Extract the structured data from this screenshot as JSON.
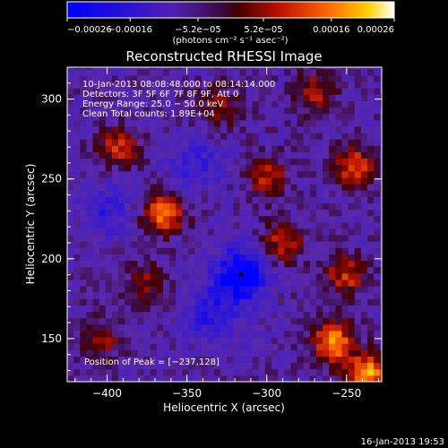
{
  "chart_data": {
    "type": "heatmap",
    "title": "Reconstructed RHESSI Image",
    "xlabel": "Heliocentric X (arcsec)",
    "ylabel": "Heliocentric Y (arcsec)",
    "xlim": [
      -425,
      -228
    ],
    "ylim": [
      123,
      320
    ],
    "x_ticks": [
      {
        "value": -400,
        "label": "−400"
      },
      {
        "value": -350,
        "label": "−350"
      },
      {
        "value": -300,
        "label": "−300"
      },
      {
        "value": -250,
        "label": "−250"
      }
    ],
    "y_ticks": [
      {
        "value": 150,
        "label": "150"
      },
      {
        "value": 200,
        "label": "200"
      },
      {
        "value": 250,
        "label": "250"
      },
      {
        "value": 300,
        "label": "300"
      }
    ],
    "colorbar": {
      "range": [
        -0.00026,
        0.00026
      ],
      "ticks": [
        {
          "value": -0.00026,
          "label": "−0.00026"
        },
        {
          "value": -0.00016,
          "label": "−0.00016"
        },
        {
          "value": -5.2e-05,
          "label": "−5.2e−05"
        },
        {
          "value": 5.2e-05,
          "label": "5.2e−05"
        },
        {
          "value": 0.00016,
          "label": "0.00016"
        },
        {
          "value": 0.00026,
          "label": "0.00026"
        }
      ],
      "unit_label": "(photons cm⁻² s⁻¹ asec⁻²)"
    },
    "annotations": [
      "10-Jan-2013 08:08:48.000 to 08:14:14.000",
      "Detectors: 3F 5F 6F 7F 8F 9F, Att 0",
      "Energy Range: 25.0 − 50.0 keV",
      "Clean    Total counts: 1.89E+04"
    ],
    "peak": {
      "x": -237,
      "y": 128,
      "label": "Position of Peak = [−237,128]"
    },
    "marker": {
      "x": -316,
      "y": 190
    },
    "hotspots": [
      {
        "x": -365,
        "y": 228,
        "value": 0.00022
      },
      {
        "x": -393,
        "y": 270,
        "value": 0.00016
      },
      {
        "x": -258,
        "y": 148,
        "value": 0.00024
      },
      {
        "x": -237,
        "y": 128,
        "value": 0.00026
      },
      {
        "x": -245,
        "y": 258,
        "value": 0.00018
      },
      {
        "x": -300,
        "y": 252,
        "value": 0.00014
      },
      {
        "x": -290,
        "y": 210,
        "value": 0.00015
      },
      {
        "x": -405,
        "y": 150,
        "value": 0.00013
      },
      {
        "x": -330,
        "y": 295,
        "value": 0.00012
      },
      {
        "x": -270,
        "y": 305,
        "value": 0.00013
      },
      {
        "x": -250,
        "y": 190,
        "value": 0.00016
      },
      {
        "x": -375,
        "y": 185,
        "value": 0.0001
      }
    ],
    "coldspots": [
      {
        "x": -316,
        "y": 190,
        "value": -0.00022
      },
      {
        "x": -335,
        "y": 165,
        "value": -0.00012
      },
      {
        "x": -400,
        "y": 230,
        "value": -0.0001
      },
      {
        "x": -345,
        "y": 260,
        "value": -9e-05
      }
    ]
  },
  "footer": {
    "timestamp": "16-Jan-2013 19:53"
  }
}
